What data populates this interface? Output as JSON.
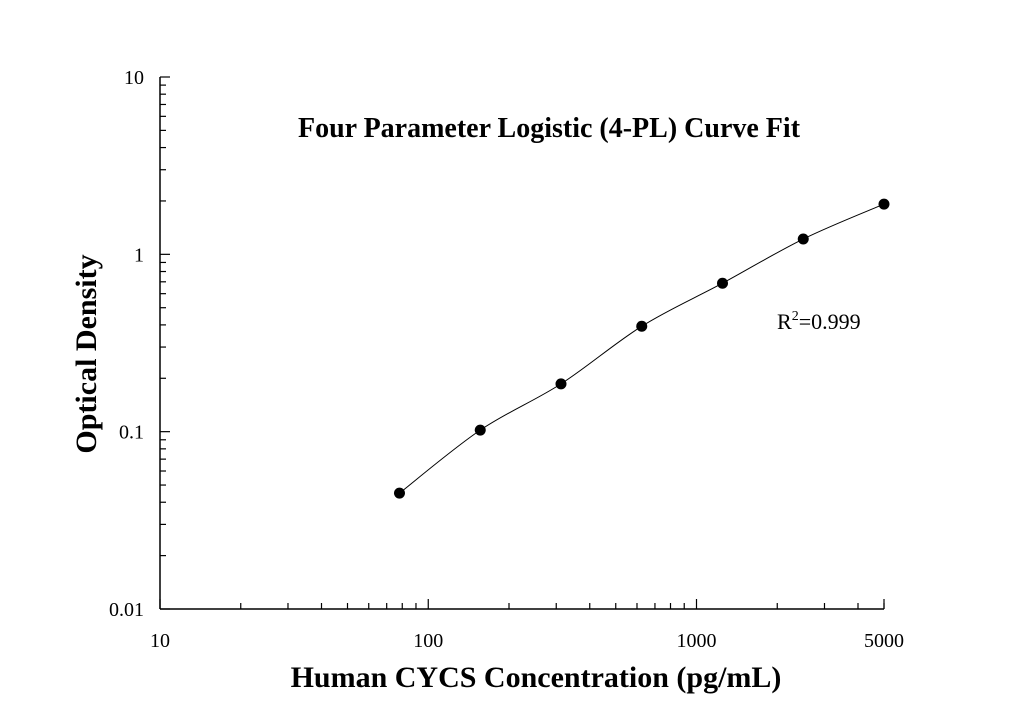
{
  "chart_data": {
    "type": "scatter",
    "title": "Four Parameter Logistic (4-PL) Curve Fit",
    "xlabel": "Human CYCS Concentration (pg/mL)",
    "ylabel": "Optical Density",
    "x_scale": "log",
    "y_scale": "log",
    "xlim": [
      10,
      5000
    ],
    "ylim": [
      0.01,
      10
    ],
    "x_ticks": [
      {
        "value": 10,
        "label": "10"
      },
      {
        "value": 100,
        "label": "100"
      },
      {
        "value": 1000,
        "label": "1000"
      },
      {
        "value": 5000,
        "label": "5000"
      }
    ],
    "y_ticks": [
      {
        "value": 0.01,
        "label": "0.01"
      },
      {
        "value": 0.1,
        "label": "0.1"
      },
      {
        "value": 1,
        "label": "1"
      },
      {
        "value": 10,
        "label": "10"
      }
    ],
    "grid": false,
    "series": [
      {
        "points": [
          {
            "x": 78.125,
            "y": 0.045
          },
          {
            "x": 156.25,
            "y": 0.102
          },
          {
            "x": 312.5,
            "y": 0.186
          },
          {
            "x": 625,
            "y": 0.393
          },
          {
            "x": 1250,
            "y": 0.687
          },
          {
            "x": 2500,
            "y": 1.22
          },
          {
            "x": 5000,
            "y": 1.92
          }
        ],
        "color": "#000000",
        "fit": "4-PL"
      }
    ],
    "annotations": [
      {
        "text_main": "R",
        "text_sup": "2",
        "text_tail": "=0.999"
      }
    ]
  }
}
